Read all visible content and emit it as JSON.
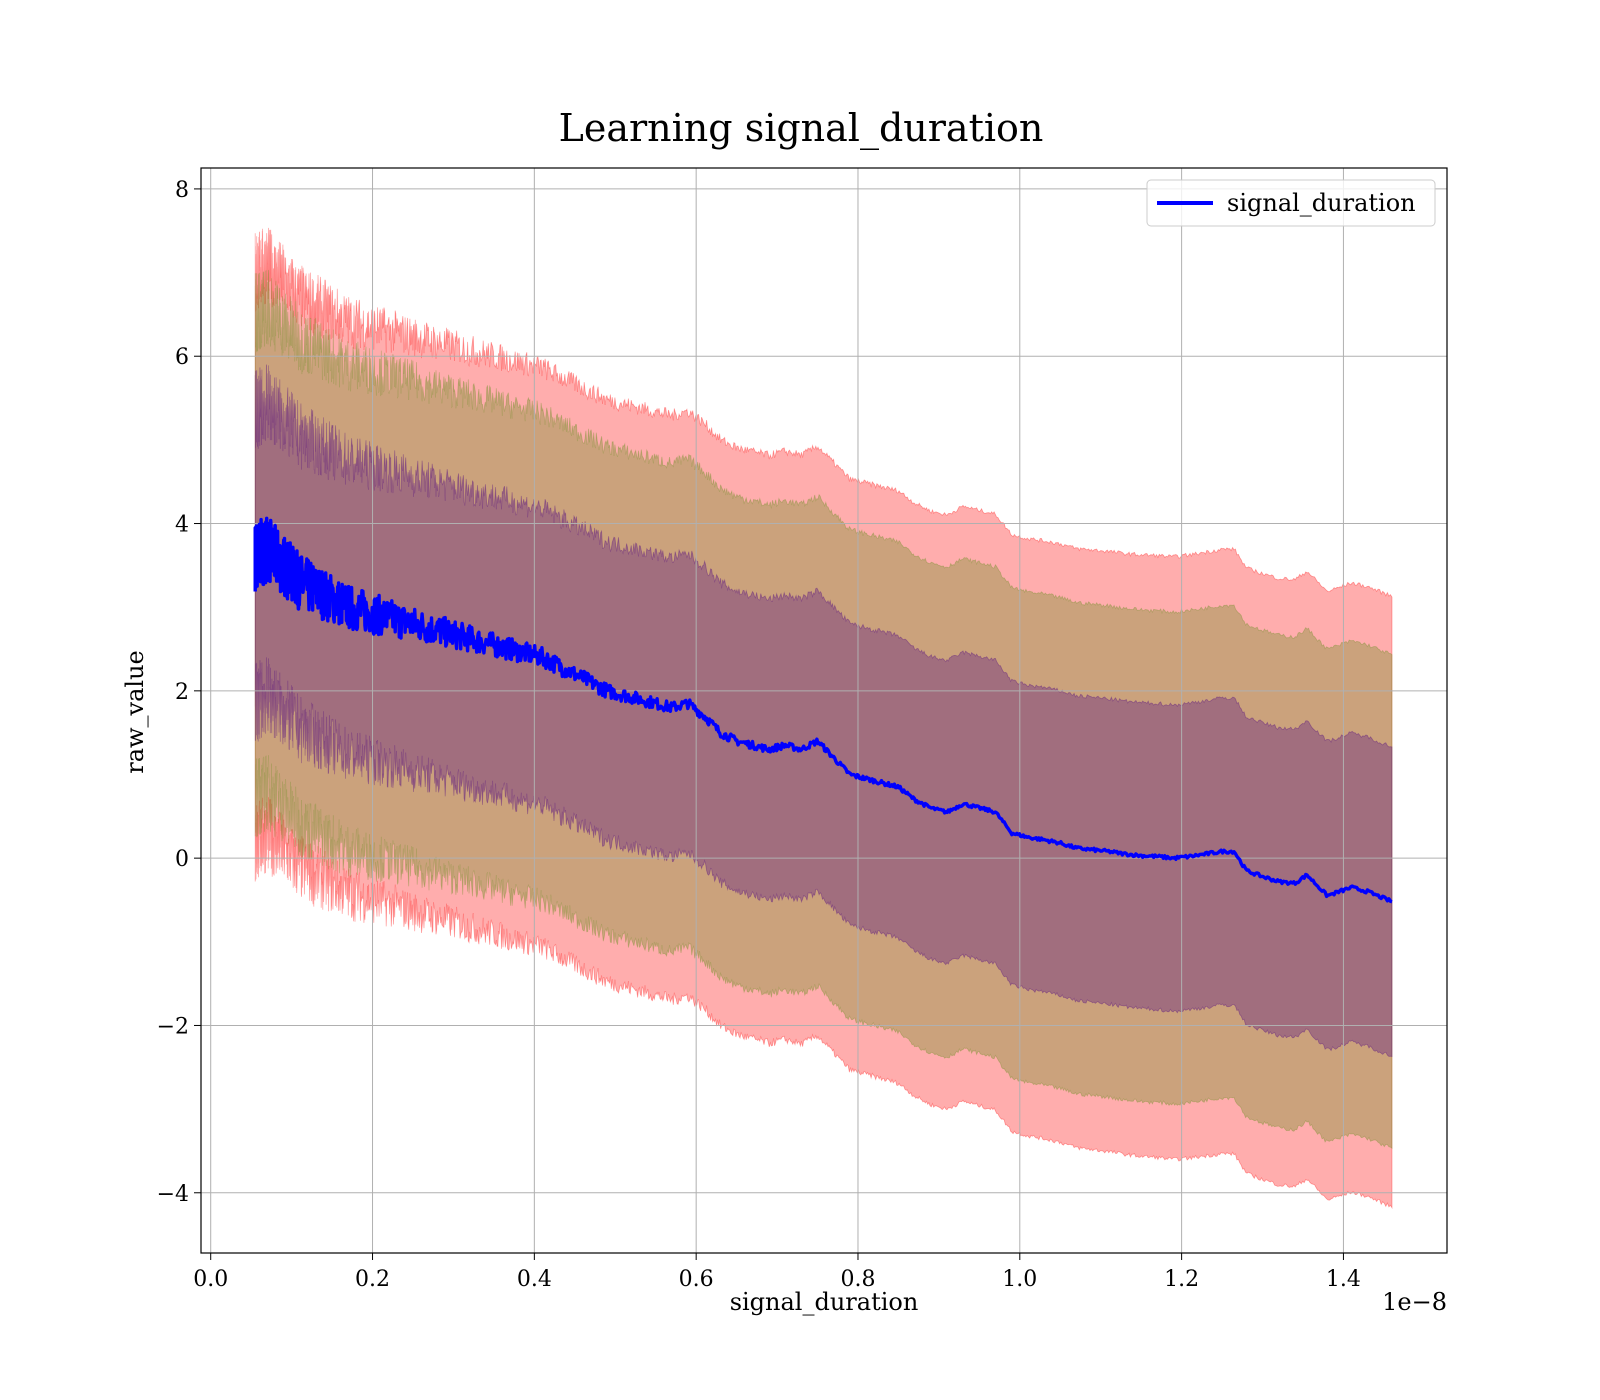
{
  "chart_data": {
    "type": "line",
    "title": "Learning signal_duration",
    "xlabel": "signal_duration",
    "ylabel": "raw_value",
    "x_offset_text": "1e−8",
    "xlim": [
      -0.012,
      1.528
    ],
    "ylim": [
      -4.72,
      8.25
    ],
    "x_ticks": [
      0.0,
      0.2,
      0.4,
      0.6,
      0.8,
      1.0,
      1.2,
      1.4
    ],
    "x_tick_labels": [
      "0.0",
      "0.2",
      "0.4",
      "0.6",
      "0.8",
      "1.0",
      "1.2",
      "1.4"
    ],
    "y_ticks": [
      -4,
      -2,
      0,
      2,
      4,
      6,
      8
    ],
    "y_tick_labels": [
      "−4",
      "−2",
      "0",
      "2",
      "4",
      "6",
      "8"
    ],
    "grid": true,
    "legend": {
      "position": "upper right",
      "entries": [
        "signal_duration"
      ]
    },
    "series": [
      {
        "name": "signal_duration",
        "color": "#0000ff",
        "x": [
          0.055,
          0.07,
          0.09,
          0.11,
          0.13,
          0.15,
          0.17,
          0.19,
          0.21,
          0.23,
          0.25,
          0.27,
          0.29,
          0.31,
          0.33,
          0.35,
          0.37,
          0.39,
          0.41,
          0.43,
          0.45,
          0.47,
          0.49,
          0.51,
          0.53,
          0.55,
          0.57,
          0.59,
          0.61,
          0.63,
          0.65,
          0.67,
          0.69,
          0.71,
          0.73,
          0.75,
          0.77,
          0.79,
          0.81,
          0.83,
          0.85,
          0.87,
          0.89,
          0.91,
          0.93,
          0.95,
          0.97,
          0.99,
          1.01,
          1.03,
          1.05,
          1.07,
          1.09,
          1.11,
          1.13,
          1.15,
          1.17,
          1.19,
          1.21,
          1.23,
          1.25,
          1.265,
          1.28,
          1.3,
          1.32,
          1.34,
          1.355,
          1.38,
          1.41,
          1.43,
          1.46
        ],
        "y": [
          3.6,
          3.7,
          3.5,
          3.3,
          3.2,
          3.1,
          3.0,
          2.95,
          2.9,
          2.85,
          2.8,
          2.75,
          2.7,
          2.65,
          2.6,
          2.55,
          2.5,
          2.45,
          2.4,
          2.3,
          2.2,
          2.1,
          2.0,
          1.95,
          1.9,
          1.85,
          1.8,
          1.85,
          1.7,
          1.5,
          1.4,
          1.35,
          1.3,
          1.35,
          1.3,
          1.4,
          1.2,
          1.0,
          0.95,
          0.9,
          0.85,
          0.7,
          0.6,
          0.55,
          0.65,
          0.6,
          0.55,
          0.3,
          0.25,
          0.22,
          0.18,
          0.12,
          0.1,
          0.08,
          0.05,
          0.03,
          0.02,
          0.0,
          0.02,
          0.05,
          0.08,
          0.08,
          -0.15,
          -0.22,
          -0.28,
          -0.3,
          -0.2,
          -0.45,
          -0.35,
          -0.4,
          -0.52
        ]
      }
    ],
    "bands": [
      {
        "color": "#ff0000",
        "opacity": 0.32,
        "spread_start": 3.4,
        "spread_end": 3.65
      },
      {
        "color": "#6b8e23",
        "opacity": 0.35,
        "spread_start": 2.9,
        "spread_end": 2.95
      },
      {
        "color": "#4b0082",
        "opacity": 0.32,
        "spread_start": 1.75,
        "spread_end": 1.85
      }
    ]
  }
}
